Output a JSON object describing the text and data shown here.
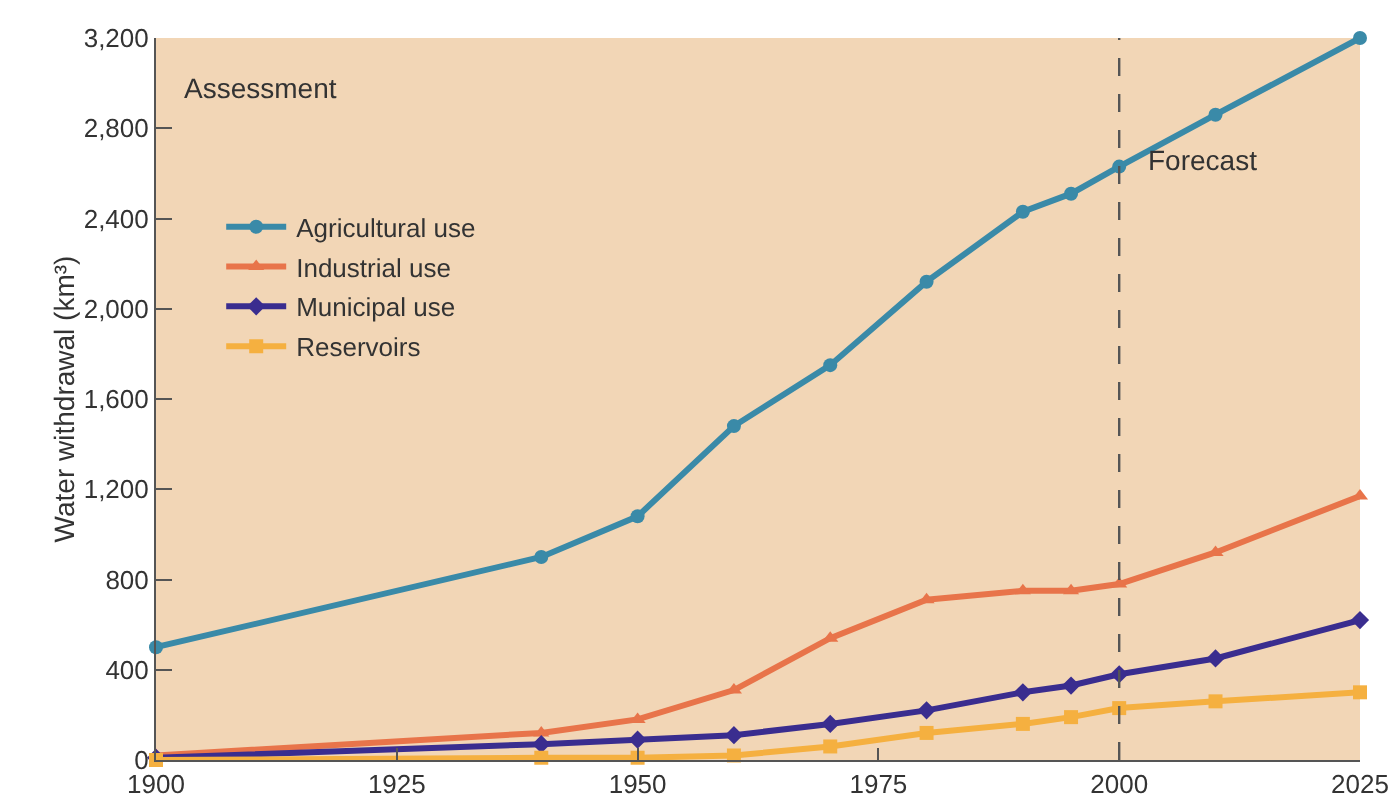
{
  "chart_data": {
    "type": "line",
    "ylabel": "Water withdrawal (km³)",
    "x": [
      1900,
      1940,
      1950,
      1960,
      1970,
      1980,
      1990,
      1995,
      2000,
      2010,
      2025
    ],
    "series": [
      {
        "name": "Agricultural use",
        "color": "#3a8aa8",
        "marker": "circle",
        "values": [
          500,
          900,
          1080,
          1480,
          1750,
          2120,
          2430,
          2510,
          2630,
          2860,
          3200
        ]
      },
      {
        "name": "Industrial use",
        "color": "#e8744a",
        "marker": "triangle",
        "values": [
          20,
          120,
          180,
          310,
          540,
          710,
          750,
          750,
          780,
          920,
          1170
        ]
      },
      {
        "name": "Municipal use",
        "color": "#3a2d8f",
        "marker": "diamond",
        "values": [
          10,
          70,
          90,
          110,
          160,
          220,
          300,
          330,
          380,
          450,
          620
        ]
      },
      {
        "name": "Reservoirs",
        "color": "#f5b040",
        "marker": "square",
        "values": [
          0,
          10,
          10,
          20,
          60,
          120,
          160,
          190,
          230,
          260,
          300
        ]
      }
    ],
    "xlim": [
      1900,
      2025
    ],
    "xticks": [
      1900,
      1925,
      1950,
      1975,
      2000,
      2025
    ],
    "ylim": [
      0,
      3200
    ],
    "yticks": [
      {
        "value": 0,
        "label": "0"
      },
      {
        "value": 400,
        "label": "400"
      },
      {
        "value": 800,
        "label": "800"
      },
      {
        "value": 1200,
        "label": "1,200"
      },
      {
        "value": 1600,
        "label": "1,600"
      },
      {
        "value": 2000,
        "label": "2,000"
      },
      {
        "value": 2400,
        "label": "2,400"
      },
      {
        "value": 2800,
        "label": "2,800"
      },
      {
        "value": 3200,
        "label": "3,200"
      }
    ],
    "ref_lines": [
      {
        "axis": "x",
        "value": 2000,
        "color": "#555555",
        "line_style": "dashed"
      }
    ],
    "annotations": [
      "Assessment",
      "Forecast"
    ],
    "grid": false,
    "legend": "top left",
    "line_style": "solid"
  }
}
